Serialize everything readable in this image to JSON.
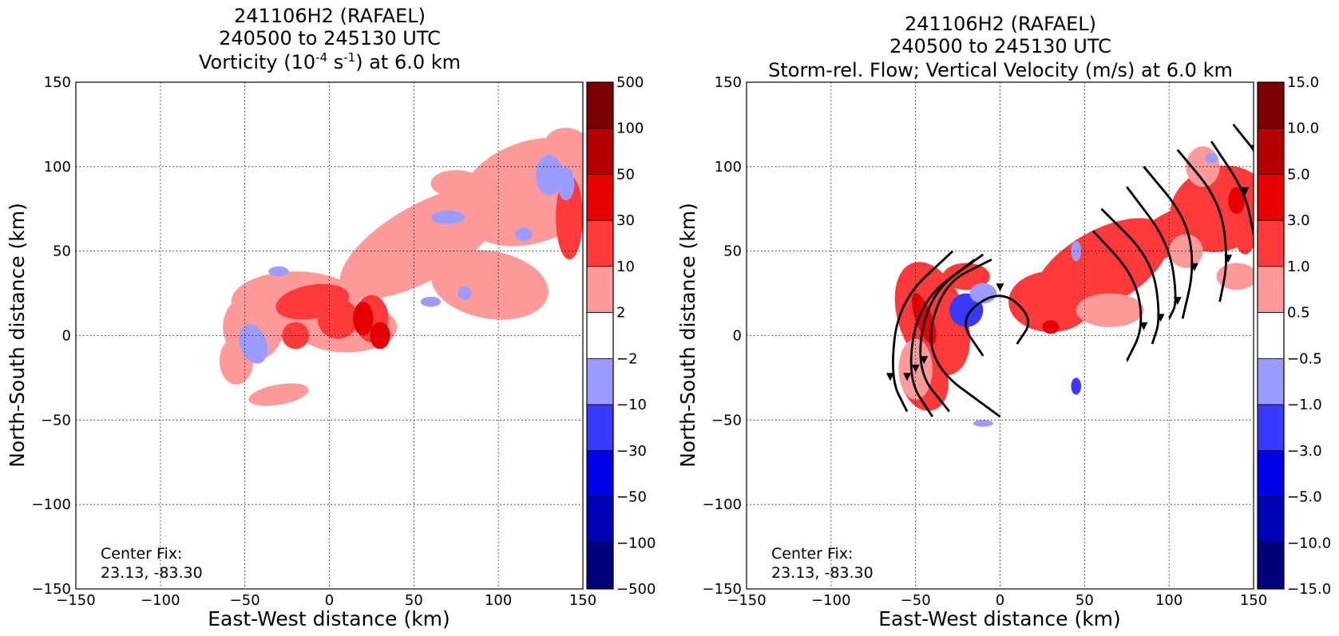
{
  "charts": [
    {
      "type": "heatmap",
      "title_lines": [
        "241106H2 (RAFAEL)",
        "240500 to 245130 UTC"
      ],
      "title_line3": {
        "pre": "Vorticity (10",
        "sup1": "-4",
        "mid": " s",
        "sup2": "-1",
        "post": ") at 6.0 km"
      },
      "xlabel": "East-West distance (km)",
      "ylabel": "North-South distance (km)",
      "xlim": [
        -150,
        150
      ],
      "ylim": [
        -150,
        150
      ],
      "xticks": [
        "−150",
        "−100",
        "−50",
        "0",
        "50",
        "100",
        "150"
      ],
      "yticks": [
        "−150",
        "−100",
        "−50",
        "0",
        "50",
        "100",
        "150"
      ],
      "grid": true,
      "annotation_lines": [
        "Center Fix:",
        "23.13, -83.30"
      ],
      "colorbar_labels": [
        "500",
        "100",
        "50",
        "30",
        "10",
        "2",
        "−2",
        "−10",
        "−30",
        "−50",
        "−100",
        "−500"
      ],
      "colorbar_colors": [
        "#7a0000",
        "#b50000",
        "#e60000",
        "#ff3a3a",
        "#ff9a9a",
        "#ffffff",
        "#9c9cff",
        "#3a3aff",
        "#0000e6",
        "#0000b5",
        "#00007a"
      ],
      "field": "vorticity"
    },
    {
      "type": "heatmap",
      "title_lines": [
        "241106H2 (RAFAEL)",
        "240500 to 245130 UTC"
      ],
      "title_line3": {
        "pre": "Storm-rel. Flow; Vertical Velocity (m/s) at 6.0 km",
        "sup1": "",
        "mid": "",
        "sup2": "",
        "post": ""
      },
      "xlabel": "East-West distance (km)",
      "ylabel": "North-South distance (km)",
      "xlim": [
        -150,
        150
      ],
      "ylim": [
        -150,
        150
      ],
      "xticks": [
        "−150",
        "−100",
        "−50",
        "0",
        "50",
        "100",
        "150"
      ],
      "yticks": [
        "−150",
        "−100",
        "−50",
        "0",
        "50",
        "100",
        "150"
      ],
      "grid": true,
      "annotation_lines": [
        "Center Fix:",
        "23.13, -83.30"
      ],
      "colorbar_labels": [
        "15.0",
        "10.0",
        "5.0",
        "3.0",
        "1.0",
        "0.5",
        "−0.5",
        "−1.0",
        "−3.0",
        "−5.0",
        "−10.0",
        "−15.0"
      ],
      "colorbar_colors": [
        "#7a0000",
        "#b50000",
        "#e60000",
        "#ff3a3a",
        "#ff9a9a",
        "#ffffff",
        "#9c9cff",
        "#3a3aff",
        "#0000e6",
        "#0000b5",
        "#00007a"
      ],
      "field": "vertical_velocity",
      "streamlines": true
    }
  ]
}
